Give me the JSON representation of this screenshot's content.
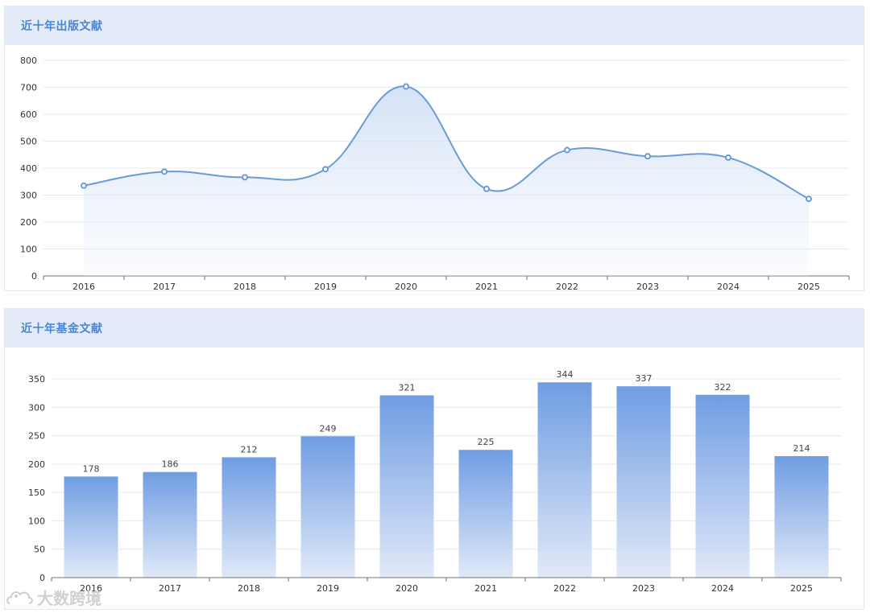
{
  "colors": {
    "header_bg": "#e4ebf8",
    "title": "#4a86d3",
    "line": "#6a9bd6",
    "bar_top": "#6f9de3",
    "bar_bottom": "#dde7f8"
  },
  "panels": [
    {
      "title": "近十年出版文献"
    },
    {
      "title": "近十年基金文献"
    }
  ],
  "watermark": {
    "text": "大数跨境",
    "icon": "cloud-logo-icon"
  },
  "chart_data": [
    {
      "type": "area",
      "title": "近十年出版文献",
      "categories": [
        "2016",
        "2017",
        "2018",
        "2019",
        "2020",
        "2021",
        "2022",
        "2023",
        "2024",
        "2025"
      ],
      "values": [
        335,
        387,
        366,
        396,
        703,
        323,
        467,
        444,
        439,
        286
      ],
      "ylim": [
        0,
        800
      ],
      "yticks": [
        0,
        100,
        200,
        300,
        400,
        500,
        600,
        700,
        800
      ],
      "grid": true,
      "smooth": true
    },
    {
      "type": "bar",
      "title": "近十年基金文献",
      "categories": [
        "2016",
        "2017",
        "2018",
        "2019",
        "2020",
        "2021",
        "2022",
        "2023",
        "2024",
        "2025"
      ],
      "values": [
        178,
        186,
        212,
        249,
        321,
        225,
        344,
        337,
        322,
        214
      ],
      "ylim": [
        0,
        350
      ],
      "yticks": [
        0,
        50,
        100,
        150,
        200,
        250,
        300,
        350
      ],
      "grid": true,
      "data_labels": true
    }
  ]
}
